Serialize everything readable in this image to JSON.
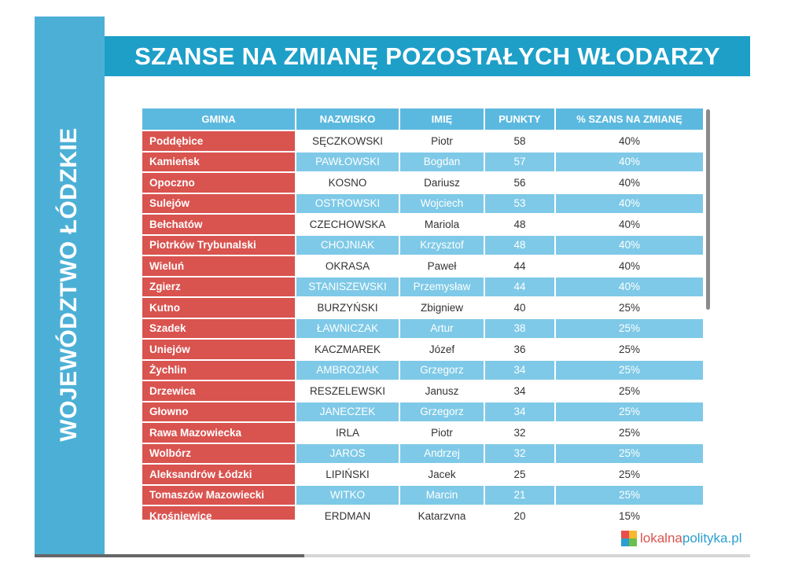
{
  "sidebar": {
    "label": "WOJEWÓDZTWO ŁÓDZKIE"
  },
  "title": "SZANSE NA ZMIANĘ POZOSTAŁYCH WŁODARZY",
  "table": {
    "headers": [
      "GMINA",
      "NAZWISKO",
      "IMIĘ",
      "PUNKTY",
      "% SZANS NA ZMIANĘ"
    ],
    "rows": [
      [
        "Poddębice",
        "SĘCZKOWSKI",
        "Piotr",
        "58",
        "40%"
      ],
      [
        "Kamieńsk",
        "PAWŁOWSKI",
        "Bogdan",
        "57",
        "40%"
      ],
      [
        "Opoczno",
        "KOSNO",
        "Dariusz",
        "56",
        "40%"
      ],
      [
        "Sulejów",
        "OSTROWSKI",
        "Wojciech",
        "53",
        "40%"
      ],
      [
        "Bełchatów",
        "CZECHOWSKA",
        "Mariola",
        "48",
        "40%"
      ],
      [
        "Piotrków Trybunalski",
        "CHOJNIAK",
        "Krzysztof",
        "48",
        "40%"
      ],
      [
        "Wieluń",
        "OKRASA",
        "Paweł",
        "44",
        "40%"
      ],
      [
        "Zgierz",
        "STANISZEWSKI",
        "Przemysław",
        "44",
        "40%"
      ],
      [
        "Kutno",
        "BURZYŃSKI",
        "Zbigniew",
        "40",
        "25%"
      ],
      [
        "Szadek",
        "ŁAWNICZAK",
        "Artur",
        "38",
        "25%"
      ],
      [
        "Uniejów",
        "KACZMAREK",
        "Józef",
        "36",
        "25%"
      ],
      [
        "Żychlin",
        "AMBROZIAK",
        "Grzegorz",
        "34",
        "25%"
      ],
      [
        "Drzewica",
        "RESZELEWSKI",
        "Janusz",
        "34",
        "25%"
      ],
      [
        "Głowno",
        "JANECZEK",
        "Grzegorz",
        "34",
        "25%"
      ],
      [
        "Rawa Mazowiecka",
        "IRLA",
        "Piotr",
        "32",
        "25%"
      ],
      [
        "Wolbórz",
        "JAROS",
        "Andrzej",
        "32",
        "25%"
      ],
      [
        "Aleksandrów Łódzki",
        "LIPIŃSKI",
        "Jacek",
        "25",
        "25%"
      ],
      [
        "Tomaszów Mazowiecki",
        "WITKO",
        "Marcin",
        "21",
        "25%"
      ],
      [
        "Krośniewice",
        "ERDMAN",
        "Katarzyna",
        "20",
        "15%"
      ]
    ]
  },
  "logo": {
    "part1": "lokalna",
    "part2": "polityka.pl",
    "icon": "cube-logo-icon"
  },
  "colors": {
    "sidebar": "#4cb0d6",
    "title_bar": "#1d9fc8",
    "header": "#5bb9df",
    "gmina_column": "#d9534f",
    "alt_row": "#7ec9e7"
  }
}
